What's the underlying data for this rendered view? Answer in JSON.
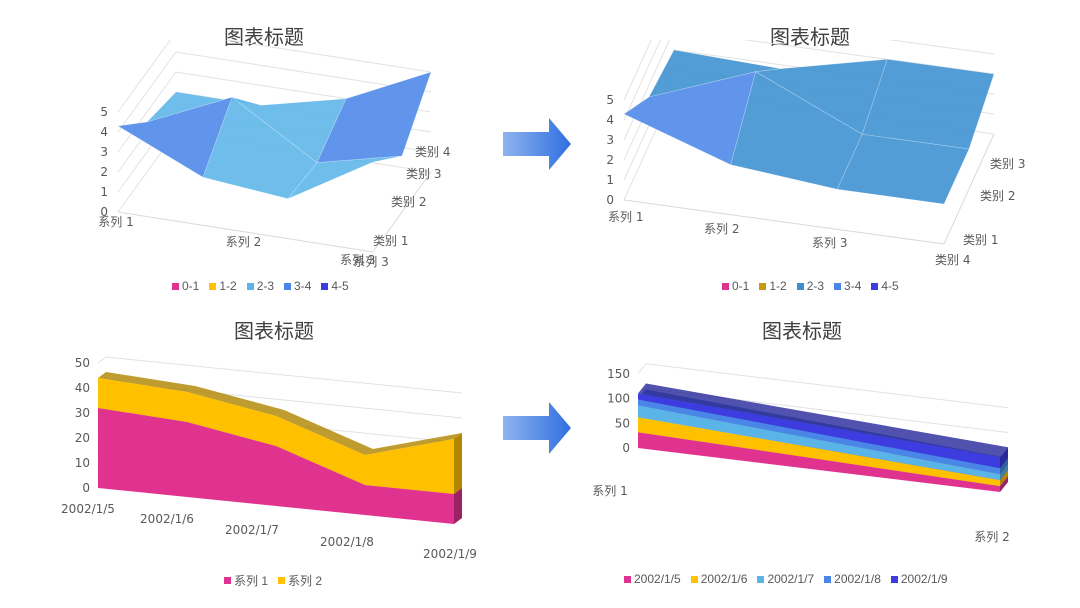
{
  "arrow_label": "",
  "chart_data": [
    {
      "type": "surface",
      "title": "图表标题",
      "zlim": [
        0,
        5
      ],
      "z_ticks": [
        "0",
        "1",
        "2",
        "3",
        "4",
        "5"
      ],
      "x_categories": [
        "系列 1",
        "系列 2",
        "系列 3"
      ],
      "depth_categories": [
        "类别 1",
        "类别 2",
        "类别 3",
        "类别 4"
      ],
      "values": [
        [
          4.3,
          2.4,
          2.0,
          4.5
        ],
        [
          2.5,
          4.4,
          1.8,
          2.8
        ],
        [
          2.0,
          2.0,
          3.0,
          5.0
        ]
      ],
      "legend": [
        "0-1",
        "1-2",
        "2-3",
        "3-4",
        "4-5"
      ],
      "colors": [
        "#e0338f",
        "#ffc000",
        "#5ab4e8",
        "#4a86e8",
        "#3c3ce0"
      ],
      "legend_position": "bottom"
    },
    {
      "type": "surface",
      "title": "图表标题",
      "zlim": [
        0,
        5
      ],
      "z_ticks": [
        "0",
        "1",
        "2",
        "3",
        "4",
        "5"
      ],
      "x_categories": [
        "系列 1",
        "系列 2",
        "系列 3"
      ],
      "depth_categories": [
        "类别 4",
        "类别 1",
        "类别 2",
        "类别 3"
      ],
      "values": [
        [
          4.3,
          2.5,
          2.0
        ],
        [
          2.4,
          4.4,
          2.0
        ],
        [
          2.0,
          1.8,
          3.0
        ],
        [
          4.5,
          2.8,
          5.0
        ]
      ],
      "legend": [
        "0-1",
        "1-2",
        "2-3",
        "3-4",
        "4-5"
      ],
      "colors": [
        "#e0338f",
        "#c99a0f",
        "#3a8fd0",
        "#4a86e8",
        "#3c3ce0"
      ],
      "legend_position": "bottom"
    },
    {
      "type": "area",
      "title": "图表标题",
      "categories": [
        "2002/1/5",
        "2002/1/6",
        "2002/1/7",
        "2002/1/8",
        "2002/1/9"
      ],
      "y_ticks": [
        "0",
        "10",
        "20",
        "30",
        "40",
        "50"
      ],
      "ylim": [
        0,
        50
      ],
      "stacked": true,
      "series": [
        {
          "name": "系列 1",
          "values": [
            32,
            30,
            24,
            12,
            12
          ]
        },
        {
          "name": "系列 2",
          "values": [
            12,
            12,
            12,
            12,
            22
          ]
        }
      ],
      "colors": [
        "#e0338f",
        "#ffc000"
      ],
      "legend_position": "bottom"
    },
    {
      "type": "area",
      "title": "图表标题",
      "categories": [
        "系列 1",
        "系列 2"
      ],
      "y_ticks": [
        "0",
        "50",
        "100",
        "150"
      ],
      "ylim": [
        0,
        150
      ],
      "stacked": true,
      "series": [
        {
          "name": "2002/1/5",
          "values": [
            32,
            12
          ]
        },
        {
          "name": "2002/1/6",
          "values": [
            30,
            12
          ]
        },
        {
          "name": "2002/1/7",
          "values": [
            24,
            12
          ]
        },
        {
          "name": "2002/1/8",
          "values": [
            12,
            12
          ]
        },
        {
          "name": "2002/1/9",
          "values": [
            12,
            22
          ]
        }
      ],
      "colors": [
        "#e0338f",
        "#ffc000",
        "#5ab4e8",
        "#4a86e8",
        "#3c3ce0"
      ],
      "legend_position": "bottom"
    }
  ]
}
